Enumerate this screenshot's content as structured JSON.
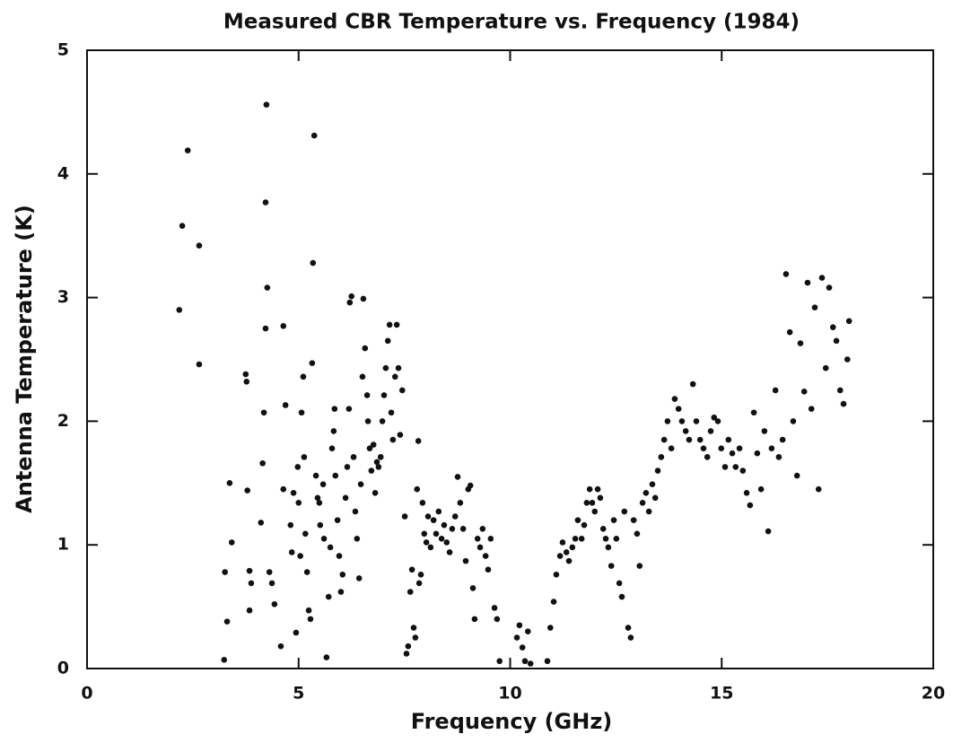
{
  "chart_data": {
    "type": "scatter",
    "title": "Measured CBR Temperature vs. Frequency (1984)",
    "x_label": "Frequency (GHz)",
    "y_label": "Antenna Temperature (K)",
    "color": "#111111",
    "xlim": [
      0,
      20
    ],
    "xticks": [
      0,
      5,
      10,
      15,
      20
    ],
    "ylim": [
      0,
      5
    ],
    "yticks": [
      0,
      1,
      2,
      3,
      4,
      5
    ],
    "x": [
      2.18,
      2.25,
      2.38,
      2.65,
      2.65,
      3.24,
      3.26,
      3.31,
      3.37,
      3.42,
      3.75,
      3.77,
      3.79,
      3.84,
      3.88,
      3.84,
      4.11,
      4.15,
      4.18,
      4.22,
      4.22,
      4.24,
      4.26,
      4.31,
      4.37,
      4.43,
      4.58,
      4.64,
      4.64,
      4.69,
      4.81,
      4.84,
      4.88,
      4.94,
      4.98,
      5.0,
      5.04,
      5.07,
      5.11,
      5.13,
      5.16,
      5.2,
      5.24,
      5.28,
      5.32,
      5.34,
      5.37,
      5.41,
      5.45,
      5.49,
      5.51,
      5.58,
      5.6,
      5.66,
      5.71,
      5.75,
      5.79,
      5.83,
      5.85,
      5.87,
      5.92,
      5.96,
      6.0,
      6.04,
      6.11,
      6.15,
      6.19,
      6.21,
      6.25,
      6.3,
      6.34,
      6.38,
      6.43,
      6.47,
      6.51,
      6.53,
      6.57,
      6.62,
      6.64,
      6.68,
      6.72,
      6.77,
      6.81,
      6.85,
      6.89,
      6.94,
      6.98,
      7.02,
      7.06,
      7.11,
      7.15,
      7.19,
      7.23,
      7.28,
      7.32,
      7.36,
      7.4,
      7.45,
      7.51,
      7.55,
      7.59,
      7.64,
      7.68,
      7.72,
      7.76,
      7.8,
      7.83,
      7.85,
      7.89,
      7.93,
      7.97,
      8.02,
      8.06,
      8.12,
      8.19,
      8.25,
      8.31,
      8.38,
      8.44,
      8.5,
      8.57,
      8.63,
      8.7,
      8.76,
      8.82,
      8.89,
      8.95,
      9.01,
      9.06,
      9.12,
      9.16,
      9.23,
      9.29,
      9.35,
      9.42,
      9.48,
      9.54,
      9.63,
      9.69,
      9.75,
      10.16,
      10.22,
      10.29,
      10.35,
      10.42,
      10.48,
      10.88,
      10.95,
      11.03,
      11.09,
      11.18,
      11.24,
      11.33,
      11.39,
      11.47,
      11.54,
      11.6,
      11.69,
      11.75,
      11.81,
      11.88,
      11.94,
      12.0,
      12.07,
      12.13,
      12.2,
      12.26,
      12.32,
      12.39,
      12.45,
      12.51,
      12.58,
      12.64,
      12.7,
      12.79,
      12.85,
      12.92,
      13.0,
      13.06,
      13.13,
      13.21,
      13.28,
      13.36,
      13.43,
      13.49,
      13.57,
      13.64,
      13.72,
      13.81,
      13.89,
      13.98,
      14.06,
      14.15,
      14.23,
      14.32,
      14.4,
      14.49,
      14.57,
      14.66,
      14.74,
      14.82,
      14.91,
      14.99,
      15.08,
      15.16,
      15.25,
      15.33,
      15.42,
      15.5,
      15.59,
      15.67,
      15.76,
      15.84,
      15.93,
      16.01,
      16.1,
      16.18,
      16.27,
      16.35,
      16.44,
      16.52,
      16.61,
      16.69,
      16.78,
      16.86,
      16.95,
      17.03,
      17.12,
      17.2,
      17.29,
      17.37,
      17.46,
      17.54,
      17.63,
      17.71,
      17.8,
      17.88,
      17.97,
      18.01
    ],
    "values": [
      2.9,
      3.58,
      4.19,
      3.42,
      2.46,
      0.07,
      0.78,
      0.38,
      1.5,
      1.02,
      2.38,
      2.32,
      1.44,
      0.79,
      0.69,
      0.47,
      1.18,
      1.66,
      2.07,
      2.75,
      3.77,
      4.56,
      3.08,
      0.78,
      0.69,
      0.52,
      0.18,
      2.77,
      1.45,
      2.13,
      1.16,
      0.94,
      1.42,
      0.29,
      1.63,
      1.34,
      0.91,
      2.07,
      2.36,
      1.71,
      1.09,
      0.78,
      0.47,
      0.4,
      2.47,
      3.28,
      4.31,
      1.56,
      1.38,
      1.34,
      1.16,
      1.49,
      1.05,
      0.09,
      0.58,
      0.98,
      1.78,
      1.92,
      2.1,
      1.56,
      1.2,
      0.91,
      0.62,
      0.76,
      1.38,
      1.63,
      2.1,
      2.96,
      3.01,
      1.71,
      1.27,
      1.05,
      0.73,
      1.49,
      2.36,
      2.99,
      2.59,
      2.21,
      2.0,
      1.78,
      1.6,
      1.81,
      1.42,
      1.67,
      1.63,
      1.71,
      2.0,
      2.21,
      2.43,
      2.65,
      2.78,
      2.07,
      1.85,
      2.36,
      2.78,
      2.43,
      1.89,
      2.25,
      1.23,
      0.12,
      0.18,
      0.62,
      0.8,
      0.33,
      0.25,
      1.45,
      1.84,
      0.69,
      0.76,
      1.34,
      1.09,
      1.02,
      1.23,
      0.98,
      1.2,
      1.09,
      1.27,
      1.05,
      1.16,
      1.02,
      0.94,
      1.13,
      1.23,
      1.55,
      1.34,
      1.13,
      0.87,
      1.45,
      1.48,
      0.65,
      0.4,
      1.05,
      0.98,
      1.13,
      0.91,
      0.8,
      1.05,
      0.49,
      0.4,
      0.06,
      0.25,
      0.35,
      0.17,
      0.06,
      0.3,
      0.04,
      0.06,
      0.33,
      0.54,
      0.76,
      0.91,
      1.02,
      0.94,
      0.87,
      0.98,
      1.05,
      1.2,
      1.05,
      1.16,
      1.34,
      1.45,
      1.34,
      1.27,
      1.45,
      1.38,
      1.13,
      1.05,
      0.98,
      0.83,
      1.2,
      1.05,
      0.69,
      0.58,
      1.27,
      0.33,
      0.25,
      1.2,
      1.09,
      0.83,
      1.34,
      1.42,
      1.27,
      1.49,
      1.38,
      1.6,
      1.71,
      1.85,
      2.0,
      1.78,
      2.18,
      2.1,
      2.0,
      1.92,
      1.85,
      2.3,
      2.0,
      1.85,
      1.78,
      1.71,
      1.92,
      2.03,
      2.0,
      1.78,
      1.63,
      1.85,
      1.74,
      1.63,
      1.78,
      1.6,
      1.42,
      1.32,
      2.07,
      1.74,
      1.45,
      1.92,
      1.11,
      1.78,
      2.25,
      1.71,
      1.85,
      3.19,
      2.72,
      2.0,
      1.56,
      2.63,
      2.24,
      3.12,
      2.1,
      2.92,
      1.45,
      3.16,
      2.43,
      3.08,
      2.76,
      2.65,
      2.25,
      2.14,
      2.5,
      2.81
    ]
  }
}
